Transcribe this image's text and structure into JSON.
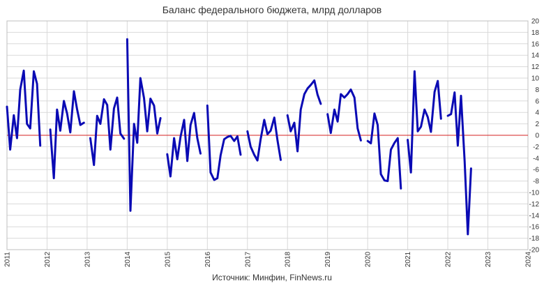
{
  "chart_data": {
    "type": "line",
    "title": "Баланс федерального бюджета, млрд долларов",
    "source": "Источник: Минфин, FinNews.ru",
    "xlabel": "",
    "ylabel": "",
    "xlim": [
      2011,
      2024
    ],
    "ylim": [
      -20,
      20
    ],
    "x_ticks": [
      "2011",
      "2012",
      "2013",
      "2014",
      "2015",
      "2016",
      "2017",
      "2018",
      "2019",
      "2020",
      "2021",
      "2022",
      "2023",
      "2024"
    ],
    "y_ticks": [
      20,
      18,
      16,
      14,
      12,
      10,
      8,
      6,
      4,
      2,
      0,
      -2,
      -4,
      -6,
      -8,
      -10,
      -12,
      -14,
      -16,
      -18,
      -20
    ],
    "grid": true,
    "zero_line": true,
    "colors": {
      "line": "#0a0ab4",
      "zero_line": "#d62020",
      "grid": "#d9d9d9",
      "negative_tick": "#cc0000",
      "positive_tick": "#333333"
    },
    "series": [
      {
        "values": [
          [
            [
              2011.0,
              5.0
            ],
            [
              2011.08,
              -2.5
            ],
            [
              2011.17,
              3.5
            ],
            [
              2011.25,
              -0.5
            ],
            [
              2011.33,
              8.0
            ],
            [
              2011.42,
              11.3
            ],
            [
              2011.5,
              2.0
            ],
            [
              2011.58,
              1.2
            ],
            [
              2011.67,
              11.2
            ],
            [
              2011.75,
              9.0
            ],
            [
              2011.83,
              -1.8
            ]
          ],
          [
            [
              2012.08,
              1.0
            ],
            [
              2012.17,
              -7.5
            ],
            [
              2012.25,
              4.5
            ],
            [
              2012.33,
              0.8
            ],
            [
              2012.42,
              6.0
            ],
            [
              2012.5,
              3.8
            ],
            [
              2012.58,
              0.5
            ],
            [
              2012.67,
              7.7
            ],
            [
              2012.75,
              4.5
            ],
            [
              2012.83,
              1.8
            ],
            [
              2012.92,
              2.2
            ]
          ],
          [
            [
              2013.08,
              -0.5
            ],
            [
              2013.17,
              -5.2
            ],
            [
              2013.25,
              3.4
            ],
            [
              2013.33,
              2.0
            ],
            [
              2013.42,
              6.3
            ],
            [
              2013.5,
              5.3
            ],
            [
              2013.58,
              -2.5
            ],
            [
              2013.67,
              4.7
            ],
            [
              2013.75,
              6.6
            ],
            [
              2013.83,
              0.3
            ],
            [
              2013.92,
              -0.6
            ]
          ],
          [
            [
              2014.0,
              16.8
            ],
            [
              2014.08,
              -13.2
            ],
            [
              2014.17,
              2.0
            ],
            [
              2014.25,
              -1.3
            ],
            [
              2014.33,
              10.0
            ],
            [
              2014.42,
              6.5
            ],
            [
              2014.5,
              0.7
            ],
            [
              2014.58,
              6.4
            ],
            [
              2014.67,
              5.2
            ],
            [
              2014.75,
              0.3
            ],
            [
              2014.83,
              3.0
            ]
          ],
          [
            [
              2015.0,
              -3.3
            ],
            [
              2015.08,
              -7.2
            ],
            [
              2015.17,
              -0.5
            ],
            [
              2015.25,
              -4.2
            ],
            [
              2015.33,
              -0.3
            ],
            [
              2015.42,
              2.7
            ],
            [
              2015.5,
              -4.5
            ],
            [
              2015.58,
              1.8
            ],
            [
              2015.67,
              3.9
            ],
            [
              2015.75,
              -0.5
            ],
            [
              2015.83,
              -3.2
            ]
          ],
          [
            [
              2016.0,
              5.2
            ],
            [
              2016.08,
              -6.5
            ],
            [
              2016.17,
              -7.8
            ],
            [
              2016.25,
              -7.5
            ],
            [
              2016.33,
              -3.5
            ],
            [
              2016.42,
              -0.7
            ],
            [
              2016.5,
              -0.3
            ],
            [
              2016.58,
              -0.1
            ],
            [
              2016.67,
              -1.0
            ],
            [
              2016.75,
              -0.2
            ],
            [
              2016.83,
              -3.4
            ]
          ],
          [
            [
              2017.0,
              0.7
            ],
            [
              2017.08,
              -2.0
            ],
            [
              2017.17,
              -3.4
            ],
            [
              2017.25,
              -4.4
            ],
            [
              2017.33,
              -0.7
            ],
            [
              2017.42,
              2.7
            ],
            [
              2017.5,
              0.2
            ],
            [
              2017.58,
              0.8
            ],
            [
              2017.67,
              3.1
            ],
            [
              2017.75,
              -0.9
            ],
            [
              2017.83,
              -4.3
            ]
          ],
          [
            [
              2018.0,
              3.5
            ],
            [
              2018.08,
              0.7
            ],
            [
              2018.17,
              2.2
            ],
            [
              2018.25,
              -2.8
            ],
            [
              2018.33,
              4.5
            ],
            [
              2018.42,
              7.2
            ],
            [
              2018.5,
              8.2
            ],
            [
              2018.58,
              8.8
            ],
            [
              2018.67,
              9.6
            ],
            [
              2018.75,
              7.1
            ],
            [
              2018.83,
              5.5
            ]
          ],
          [
            [
              2019.0,
              3.7
            ],
            [
              2019.08,
              0.4
            ],
            [
              2019.17,
              4.5
            ],
            [
              2019.25,
              2.4
            ],
            [
              2019.33,
              7.2
            ],
            [
              2019.42,
              6.6
            ],
            [
              2019.5,
              7.2
            ],
            [
              2019.58,
              8.0
            ],
            [
              2019.67,
              6.6
            ],
            [
              2019.75,
              1.2
            ],
            [
              2019.83,
              -0.9
            ]
          ],
          [
            [
              2020.0,
              -1.0
            ],
            [
              2020.08,
              -1.4
            ],
            [
              2020.17,
              3.8
            ],
            [
              2020.25,
              1.8
            ],
            [
              2020.33,
              -6.8
            ],
            [
              2020.42,
              -7.9
            ],
            [
              2020.5,
              -8.0
            ],
            [
              2020.58,
              -2.5
            ],
            [
              2020.67,
              -1.3
            ],
            [
              2020.75,
              -0.5
            ],
            [
              2020.83,
              -9.3
            ]
          ],
          [
            [
              2021.0,
              -0.8
            ],
            [
              2021.08,
              -6.5
            ],
            [
              2021.17,
              11.2
            ],
            [
              2021.25,
              0.7
            ],
            [
              2021.33,
              1.5
            ],
            [
              2021.42,
              4.5
            ],
            [
              2021.5,
              3.2
            ],
            [
              2021.58,
              0.6
            ],
            [
              2021.67,
              7.6
            ],
            [
              2021.75,
              9.5
            ],
            [
              2021.83,
              2.9
            ]
          ],
          [
            [
              2022.0,
              3.4
            ],
            [
              2022.08,
              3.7
            ],
            [
              2022.17,
              7.5
            ],
            [
              2022.25,
              -1.8
            ],
            [
              2022.33,
              6.9
            ],
            [
              2022.42,
              -4.5
            ],
            [
              2022.5,
              -17.3
            ],
            [
              2022.58,
              -5.8
            ]
          ]
        ]
      }
    ]
  }
}
